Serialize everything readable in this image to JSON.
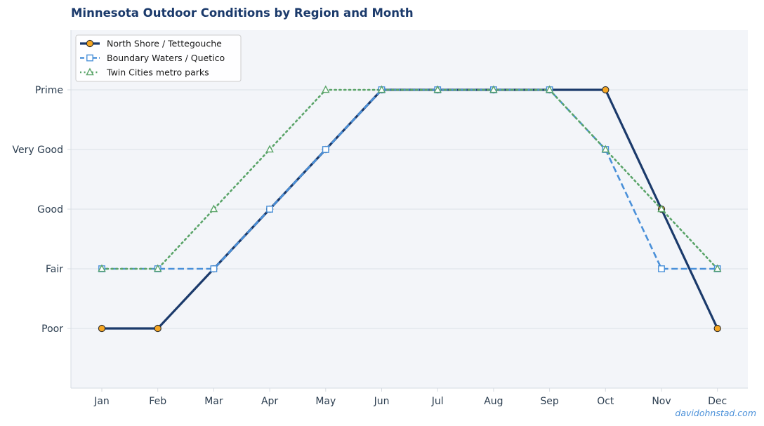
{
  "chart_data": {
    "type": "line",
    "title": "Minnesota Outdoor Conditions by Region and Month",
    "xlabel": "",
    "ylabel": "",
    "categories": [
      "Jan",
      "Feb",
      "Mar",
      "Apr",
      "May",
      "Jun",
      "Jul",
      "Aug",
      "Sep",
      "Oct",
      "Nov",
      "Dec"
    ],
    "y_ticks": [
      "Poor",
      "Fair",
      "Good",
      "Very Good",
      "Prime"
    ],
    "y_scale_note": "ordinal levels 1=Poor 2=Fair 3=Good 4=Very Good 5=Prime",
    "ylim": [
      0,
      6
    ],
    "grid": "horizontal",
    "legend_position": "top-left",
    "series": [
      {
        "name": "North Shore / Tettegouche",
        "values": [
          1,
          1,
          2,
          3,
          4,
          5,
          5,
          5,
          5,
          5,
          3,
          1
        ],
        "color": "#1b3a6b",
        "marker_fill": "#f5a623",
        "marker": "circle",
        "line_style": "solid"
      },
      {
        "name": "Boundary Waters / Quetico",
        "values": [
          2,
          2,
          2,
          3,
          4,
          5,
          5,
          5,
          5,
          4,
          2,
          2
        ],
        "color": "#4a90d9",
        "marker_fill": "#ffffff",
        "marker": "square",
        "line_style": "dashed"
      },
      {
        "name": "Twin Cities metro parks",
        "values": [
          2,
          2,
          3,
          4,
          5,
          5,
          5,
          5,
          5,
          4,
          3,
          2
        ],
        "color": "#5aa469",
        "marker_fill": "#ffffff",
        "marker": "triangle",
        "line_style": "dotted"
      }
    ]
  },
  "watermark": "davidohnstad.com",
  "colors": {
    "plot_background": "#f3f5f9",
    "grid": "#e0e5ec",
    "axis_spine": "#d6dbe2",
    "tick_text": "#2c3e50",
    "title": "#1b3a6b"
  }
}
